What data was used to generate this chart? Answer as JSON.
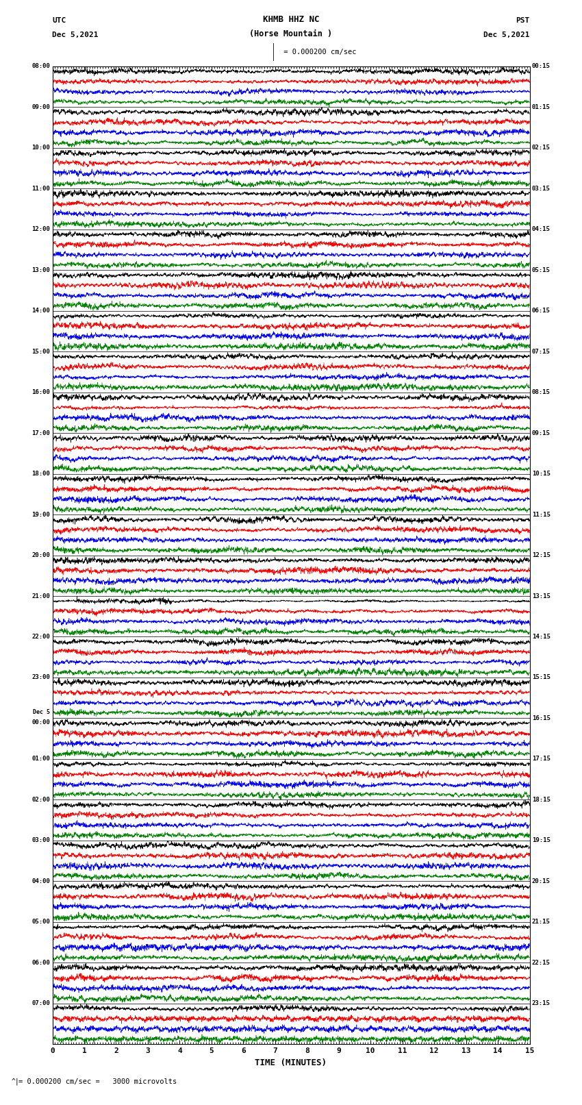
{
  "title_line1": "KHMB HHZ NC",
  "title_line2": "(Horse Mountain )",
  "scale_label": " = 0.000200 cm/sec",
  "utc_label": "UTC",
  "utc_date": "Dec 5,2021",
  "pst_label": "PST",
  "pst_date": "Dec 5,2021",
  "bottom_label": "^| = 0.000200 cm/sec =   3000 microvolts",
  "xlabel": "TIME (MINUTES)",
  "xlim": [
    0,
    15
  ],
  "xticks": [
    0,
    1,
    2,
    3,
    4,
    5,
    6,
    7,
    8,
    9,
    10,
    11,
    12,
    13,
    14,
    15
  ],
  "left_times": [
    "08:00",
    "09:00",
    "10:00",
    "11:00",
    "12:00",
    "13:00",
    "14:00",
    "15:00",
    "16:00",
    "17:00",
    "18:00",
    "19:00",
    "20:00",
    "21:00",
    "22:00",
    "23:00",
    "Dec 5\n00:00",
    "01:00",
    "02:00",
    "03:00",
    "04:00",
    "05:00",
    "06:00",
    "07:00"
  ],
  "right_times": [
    "00:15",
    "01:15",
    "02:15",
    "03:15",
    "04:15",
    "05:15",
    "06:15",
    "07:15",
    "08:15",
    "09:15",
    "10:15",
    "11:15",
    "12:15",
    "13:15",
    "14:15",
    "15:15",
    "16:15",
    "17:15",
    "18:15",
    "19:15",
    "20:15",
    "21:15",
    "22:15",
    "23:15"
  ],
  "n_rows": 24,
  "traces_per_row": 4,
  "colors": [
    "black",
    "red",
    "blue",
    "green"
  ],
  "bg_color": "white",
  "fig_width": 8.5,
  "fig_height": 16.13,
  "dpi": 100,
  "separator_color": "black",
  "separator_lw": 0.5
}
